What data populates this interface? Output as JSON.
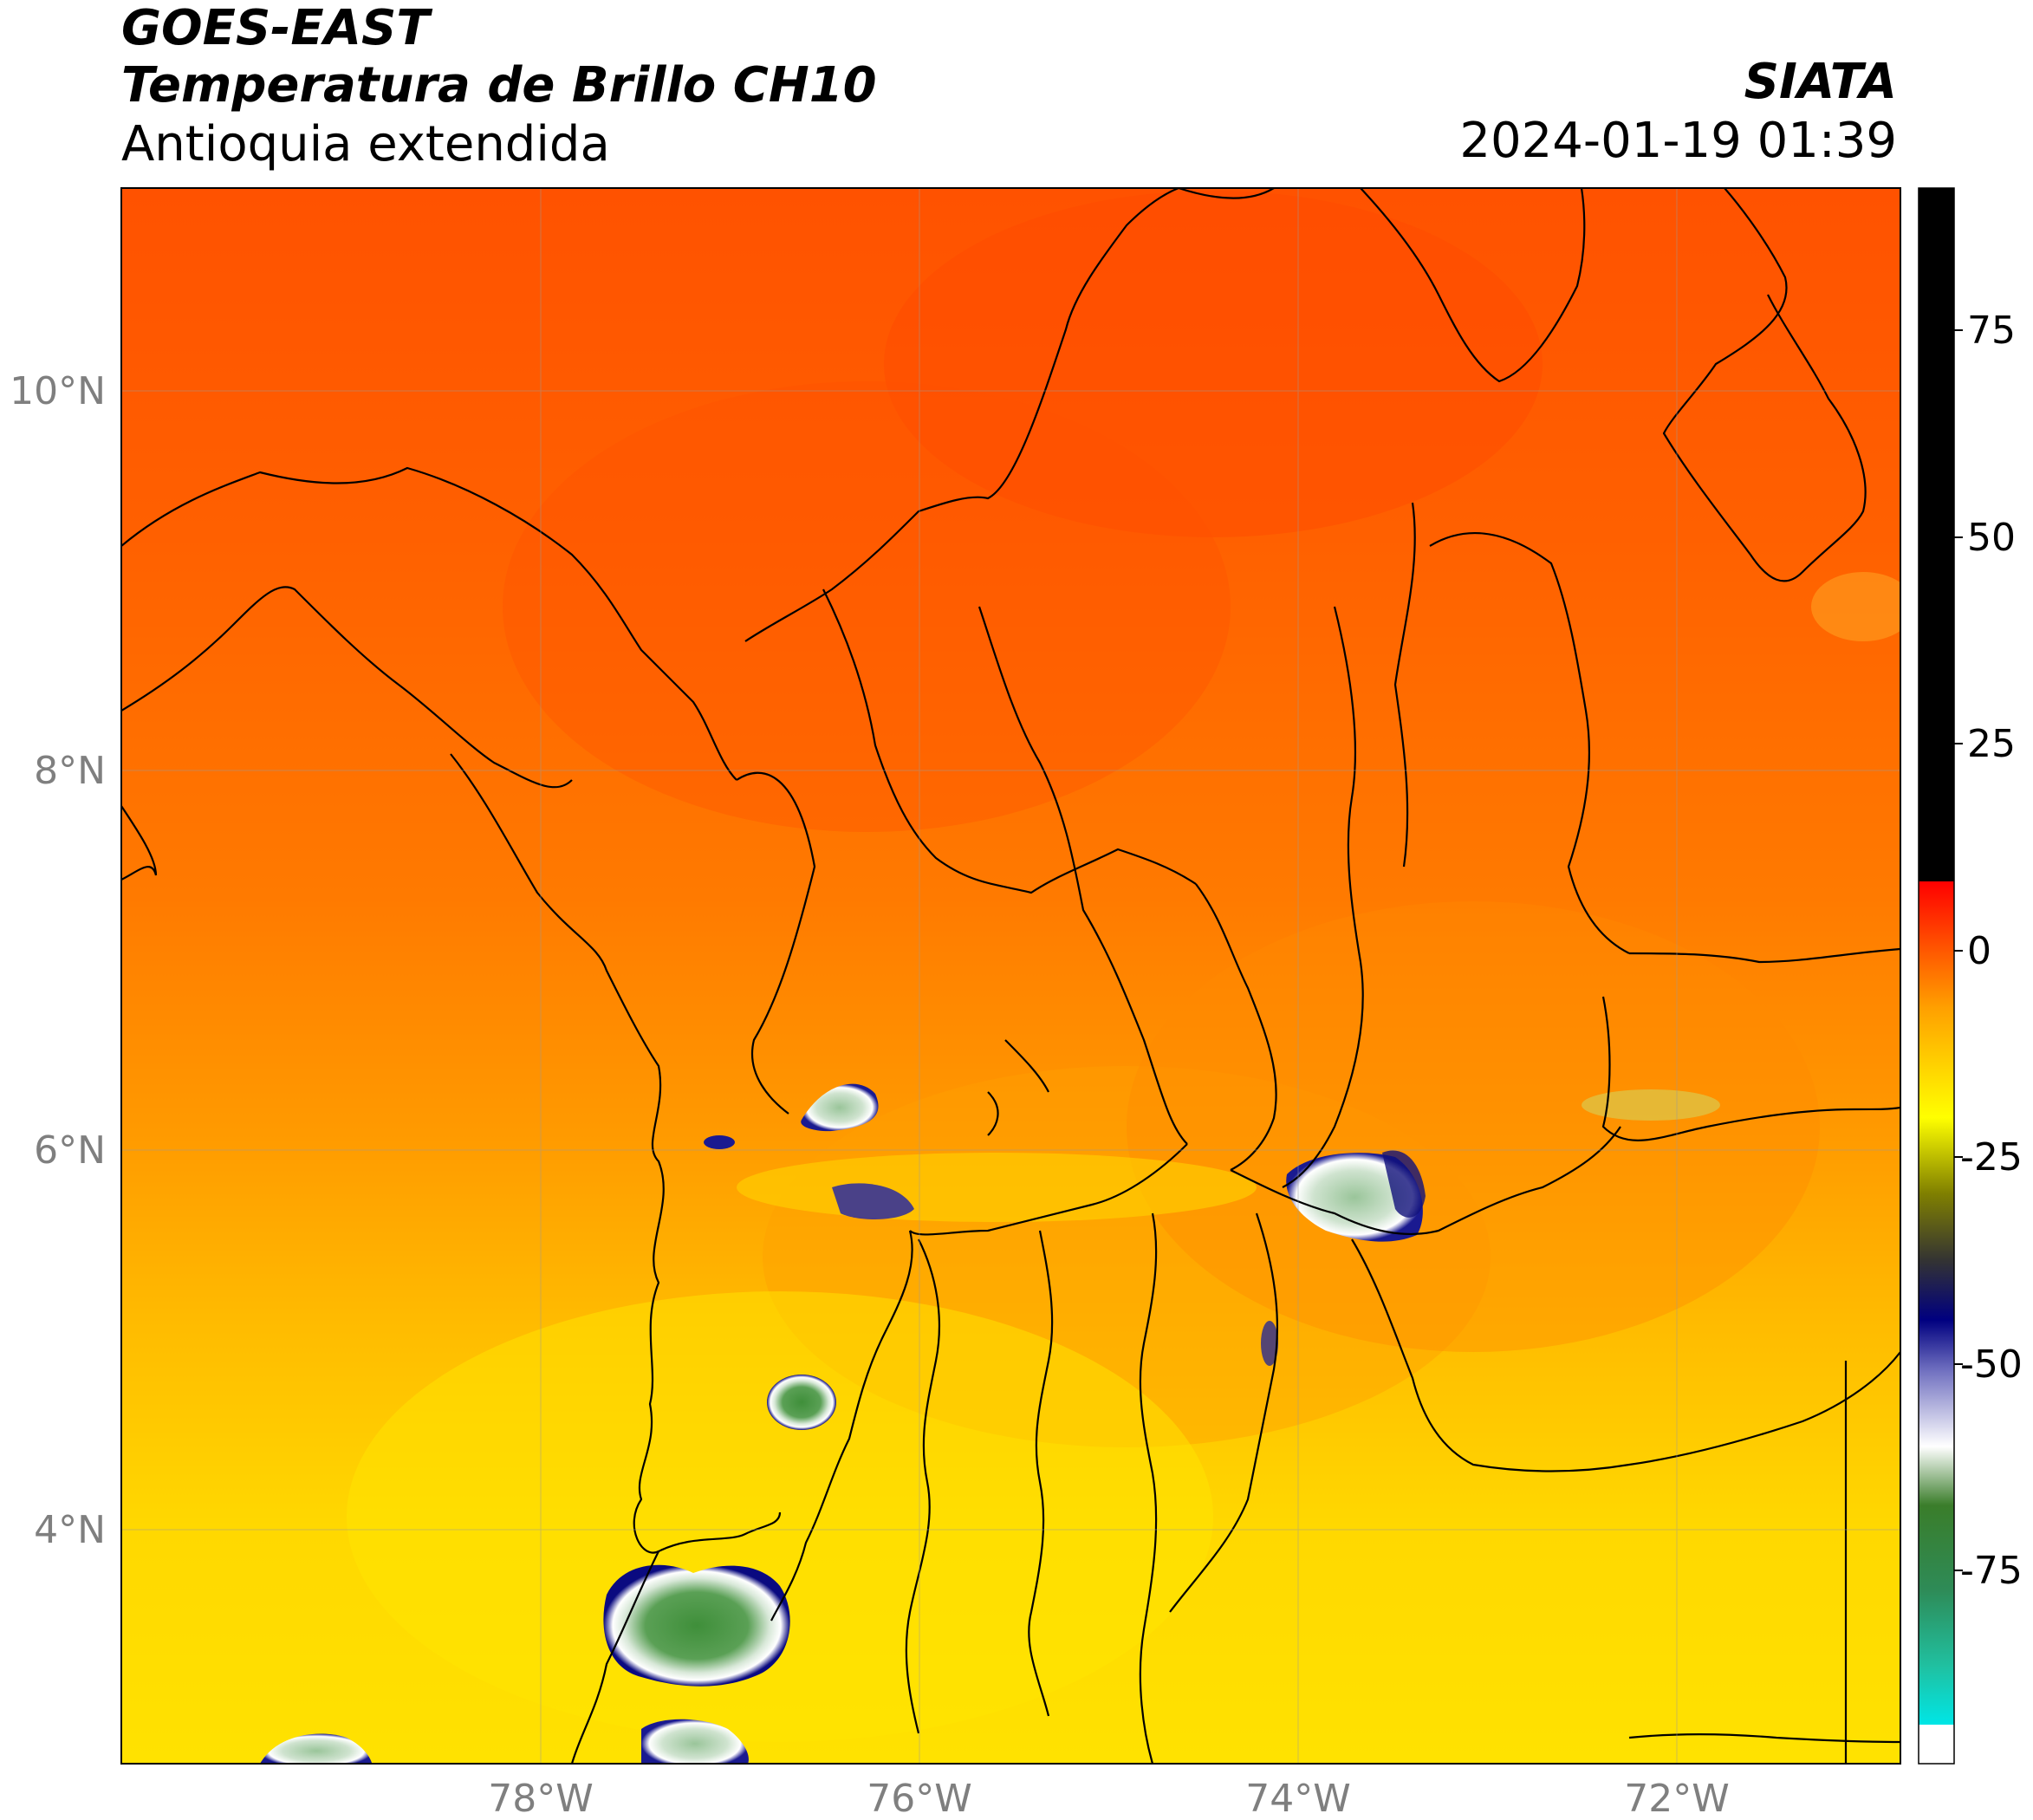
{
  "header": {
    "satellite": "GOES-EAST",
    "product": "Temperatura de Brillo CH10",
    "region": "Antioquia extendida",
    "agency": "SIATA",
    "datetime": "2024-01-19 01:39"
  },
  "map": {
    "lon_range": [
      -80.2,
      -70.8
    ],
    "lat_range": [
      2.7,
      11.0
    ],
    "lat_ticks": [
      {
        "value": 10,
        "label": "10°N"
      },
      {
        "value": 8,
        "label": "8°N"
      },
      {
        "value": 6,
        "label": "6°N"
      },
      {
        "value": 4,
        "label": "4°N"
      }
    ],
    "lon_ticks": [
      {
        "value": -78,
        "label": "78°W"
      },
      {
        "value": -76,
        "label": "76°W"
      },
      {
        "value": -74,
        "label": "74°W"
      },
      {
        "value": -72,
        "label": "72°W"
      }
    ]
  },
  "colorbar": {
    "ticks": [
      {
        "value": 75,
        "label": "75"
      },
      {
        "value": 50,
        "label": "50"
      },
      {
        "value": 25,
        "label": "25"
      },
      {
        "value": 0,
        "label": "0"
      },
      {
        "value": -25,
        "label": "-25"
      },
      {
        "value": -50,
        "label": "-50"
      },
      {
        "value": -75,
        "label": "-75"
      }
    ],
    "range": [
      -94,
      91
    ],
    "colors": {
      "black_above": "#000000",
      "red": "#ff0000",
      "orange": "#ff8c00",
      "yellow": "#ffff00",
      "olive": "#808000",
      "navy": "#000080",
      "white": "#ffffff",
      "green": "#2e7d32",
      "cyan": "#00ffff"
    }
  }
}
